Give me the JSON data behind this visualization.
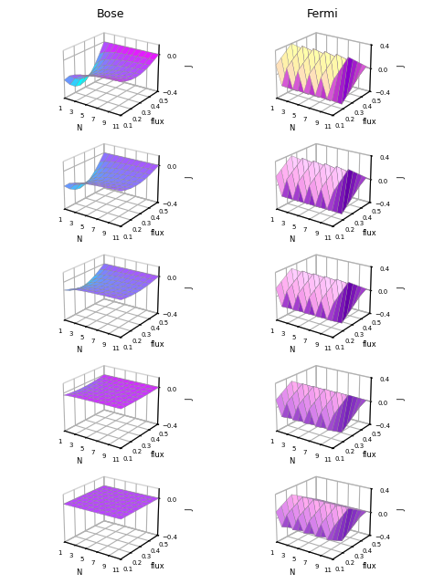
{
  "title_bose": "Bose",
  "title_fermi": "Fermi",
  "N_values": [
    1,
    2,
    3,
    4,
    5,
    6,
    7,
    8,
    9,
    10,
    11
  ],
  "flux_values": [
    0.1,
    0.15,
    0.2,
    0.25,
    0.3,
    0.35,
    0.4,
    0.45,
    0.5
  ],
  "bose_zlim": [
    -0.4,
    0.1
  ],
  "fermi_zlim": [
    -0.4,
    0.4
  ],
  "bose_zticks": [
    0,
    -0.4
  ],
  "fermi_zticks": [
    0.4,
    0,
    -0.4
  ],
  "xticks": [
    1,
    3,
    5,
    7,
    9,
    11
  ],
  "yticks": [
    0.1,
    0.2,
    0.3,
    0.4,
    0.5
  ],
  "nrows": 5,
  "elev": 22,
  "azim": -55,
  "bose_scales": [
    1.0,
    0.75,
    0.4,
    0.1,
    0.0
  ],
  "fermi_amps": [
    0.4,
    0.38,
    0.35,
    0.32,
    0.28
  ]
}
